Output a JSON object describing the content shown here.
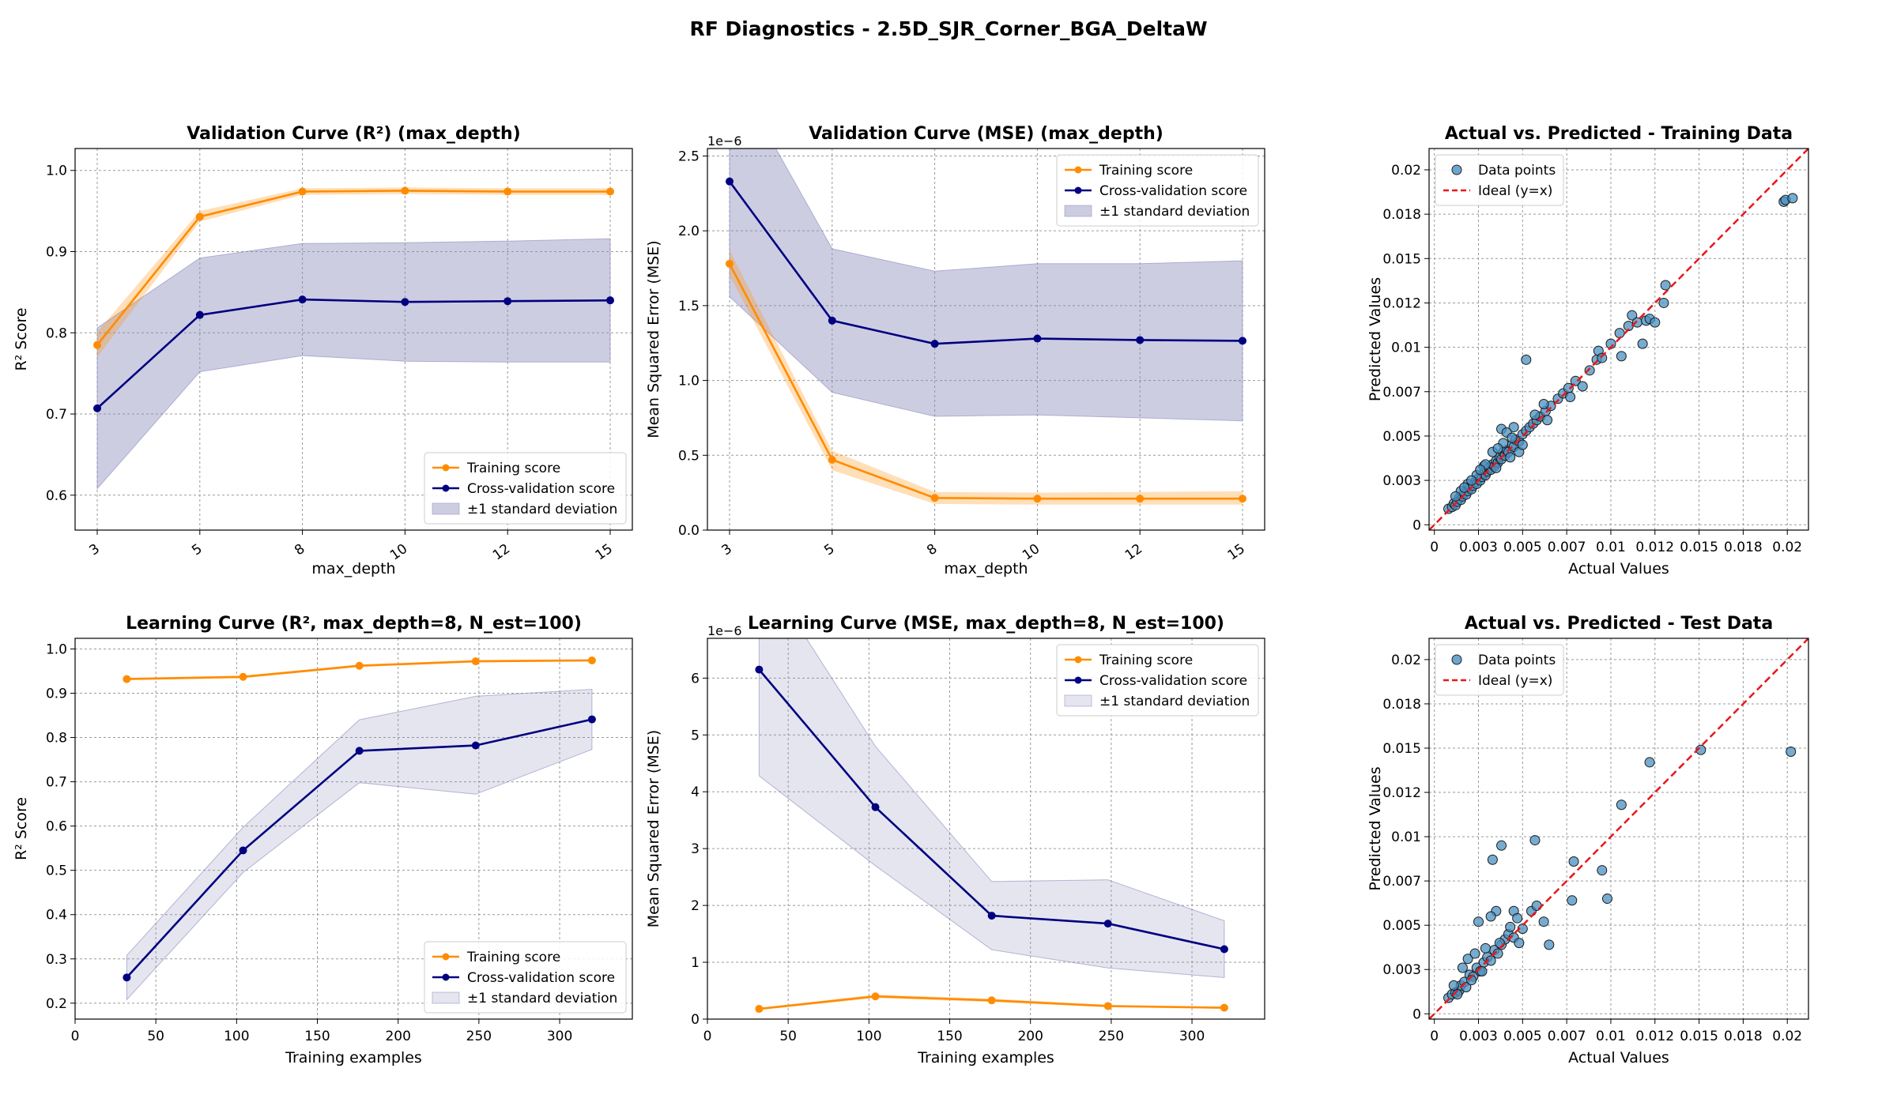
{
  "figure_title": "RF Diagnostics - 2.5D_SJR_Corner_BGA_DeltaW",
  "colors": {
    "training": "#ff8c00",
    "cv": "#000080",
    "band": "#8888bb",
    "points": "#4a90c2",
    "ideal": "#e8171b",
    "grid": "#9a9a9a"
  },
  "chart_data": [
    {
      "id": "vc_r2",
      "type": "line",
      "title": "Validation Curve (R²) (max_depth)",
      "xlabel": "max_depth",
      "ylabel": "R² Score",
      "x_scale": "categorical",
      "categories": [
        "3",
        "5",
        "8",
        "10",
        "12",
        "15"
      ],
      "ylim": [
        0.557,
        1.027
      ],
      "yticks": [
        0.6,
        0.7,
        0.8,
        0.9,
        1.0
      ],
      "ytick_labels": [
        "0.6",
        "0.7",
        "0.8",
        "0.9",
        "1.0"
      ],
      "series": [
        {
          "name": "Training score",
          "color_key": "training",
          "values": [
            0.785,
            0.943,
            0.974,
            0.975,
            0.974,
            0.974
          ],
          "lower": [
            0.77,
            0.937,
            0.97,
            0.971,
            0.97,
            0.97
          ],
          "upper": [
            0.801,
            0.95,
            0.978,
            0.979,
            0.978,
            0.978
          ]
        },
        {
          "name": "Cross-validation score",
          "color_key": "cv",
          "values": [
            0.707,
            0.822,
            0.841,
            0.838,
            0.839,
            0.84
          ],
          "lower": [
            0.608,
            0.752,
            0.772,
            0.765,
            0.764,
            0.764
          ],
          "upper": [
            0.806,
            0.892,
            0.91,
            0.911,
            0.913,
            0.916
          ]
        }
      ],
      "band_label": "±1 standard deviation",
      "legend_position": "lower-right",
      "grid": true
    },
    {
      "id": "vc_mse",
      "type": "line",
      "title": "Validation Curve (MSE) (max_depth)",
      "xlabel": "max_depth",
      "ylabel": "Mean Squared Error (MSE)",
      "x_scale": "categorical",
      "categories": [
        "3",
        "5",
        "8",
        "10",
        "12",
        "15"
      ],
      "ylim": [
        0,
        2.55e-06
      ],
      "yticks": [
        0,
        5e-07,
        1e-06,
        1.5e-06,
        2e-06,
        2.5e-06
      ],
      "ytick_labels": [
        "0.0",
        "0.5",
        "1.0",
        "1.5",
        "2.0",
        "2.5"
      ],
      "offset_text": "1e−6",
      "series": [
        {
          "name": "Training score",
          "color_key": "training",
          "values": [
            1.78e-06,
            4.7e-07,
            2.15e-07,
            2.1e-07,
            2.1e-07,
            2.1e-07
          ],
          "lower": [
            1.7e-06,
            4e-07,
            1.75e-07,
            1.7e-07,
            1.7e-07,
            1.7e-07
          ],
          "upper": [
            1.87e-06,
            5.3e-07,
            2.55e-07,
            2.5e-07,
            2.55e-07,
            2.6e-07
          ]
        },
        {
          "name": "Cross-validation score",
          "color_key": "cv",
          "values": [
            2.33e-06,
            1.4e-06,
            1.245e-06,
            1.28e-06,
            1.27e-06,
            1.265e-06
          ],
          "lower": [
            1.56e-06,
            9.2e-07,
            7.6e-07,
            7.7e-07,
            7.5e-07,
            7.3e-07
          ],
          "upper": [
            3.1e-06,
            1.88e-06,
            1.73e-06,
            1.78e-06,
            1.78e-06,
            1.8e-06
          ]
        }
      ],
      "band_label": "±1 standard deviation",
      "legend_position": "upper-right",
      "grid": true
    },
    {
      "id": "avp_train",
      "type": "scatter",
      "title": "Actual vs. Predicted - Training Data",
      "xlabel": "Actual Values",
      "ylabel": "Predicted Values",
      "xlim": [
        -0.0003,
        0.0212
      ],
      "ylim": [
        -0.0003,
        0.0212
      ],
      "ticks": [
        0,
        0.0025,
        0.005,
        0.0075,
        0.01,
        0.0125,
        0.015,
        0.0175,
        0.02
      ],
      "tick_labels": [
        "0",
        "0.003",
        "0.005",
        "0.007",
        "0.01",
        "0.012",
        "0.015",
        "0.018",
        "0.02"
      ],
      "series_name": "Data points",
      "ideal_label": "Ideal (y=x)",
      "legend_position": "upper-left",
      "points": [
        [
          0.0008,
          0.0009
        ],
        [
          0.001,
          0.001
        ],
        [
          0.0011,
          0.0012
        ],
        [
          0.0012,
          0.0011
        ],
        [
          0.0013,
          0.0013
        ],
        [
          0.0014,
          0.0015
        ],
        [
          0.0015,
          0.0014
        ],
        [
          0.0016,
          0.0016
        ],
        [
          0.0017,
          0.0018
        ],
        [
          0.0018,
          0.0017
        ],
        [
          0.0019,
          0.0019
        ],
        [
          0.002,
          0.0021
        ],
        [
          0.0021,
          0.002
        ],
        [
          0.0022,
          0.0022
        ],
        [
          0.0023,
          0.0024
        ],
        [
          0.0024,
          0.0023
        ],
        [
          0.0025,
          0.0026
        ],
        [
          0.0026,
          0.0025
        ],
        [
          0.0027,
          0.0027
        ],
        [
          0.0028,
          0.0029
        ],
        [
          0.0029,
          0.0028
        ],
        [
          0.003,
          0.003
        ],
        [
          0.0031,
          0.0032
        ],
        [
          0.0032,
          0.0031
        ],
        [
          0.0033,
          0.0034
        ],
        [
          0.0034,
          0.0033
        ],
        [
          0.0035,
          0.0036
        ],
        [
          0.0036,
          0.0035
        ],
        [
          0.0037,
          0.0038
        ],
        [
          0.0038,
          0.0037
        ],
        [
          0.0039,
          0.0041
        ],
        [
          0.004,
          0.0039
        ],
        [
          0.0041,
          0.0042
        ],
        [
          0.0042,
          0.0041
        ],
        [
          0.0044,
          0.0045
        ],
        [
          0.0045,
          0.0044
        ],
        [
          0.0046,
          0.0048
        ],
        [
          0.0048,
          0.0047
        ],
        [
          0.005,
          0.0051
        ],
        [
          0.0052,
          0.0053
        ],
        [
          0.0054,
          0.0055
        ],
        [
          0.0056,
          0.0057
        ],
        [
          0.0058,
          0.0059
        ],
        [
          0.006,
          0.0061
        ],
        [
          0.0063,
          0.0064
        ],
        [
          0.0066,
          0.0067
        ],
        [
          0.007,
          0.0071
        ],
        [
          0.0073,
          0.0074
        ],
        [
          0.0076,
          0.0077
        ],
        [
          0.008,
          0.0081
        ],
        [
          0.0088,
          0.0087
        ],
        [
          0.0092,
          0.0093
        ],
        [
          0.0093,
          0.0098
        ],
        [
          0.0095,
          0.0094
        ],
        [
          0.01,
          0.0102
        ],
        [
          0.0105,
          0.0108
        ],
        [
          0.011,
          0.0112
        ],
        [
          0.0112,
          0.0118
        ],
        [
          0.0115,
          0.0114
        ],
        [
          0.012,
          0.0115
        ],
        [
          0.0122,
          0.0116
        ],
        [
          0.0125,
          0.0114
        ],
        [
          0.0118,
          0.0102
        ],
        [
          0.013,
          0.0125
        ],
        [
          0.0131,
          0.0135
        ],
        [
          0.0106,
          0.0095
        ],
        [
          0.0052,
          0.0093
        ],
        [
          0.0045,
          0.0055
        ],
        [
          0.0043,
          0.0038
        ],
        [
          0.0038,
          0.0054
        ],
        [
          0.0035,
          0.0032
        ],
        [
          0.0041,
          0.0052
        ],
        [
          0.0048,
          0.0041
        ],
        [
          0.0062,
          0.0068
        ],
        [
          0.0077,
          0.0072
        ],
        [
          0.0084,
          0.0078
        ],
        [
          0.0064,
          0.0059
        ],
        [
          0.0057,
          0.0062
        ],
        [
          0.0033,
          0.0041
        ],
        [
          0.0028,
          0.0033
        ],
        [
          0.0024,
          0.0028
        ],
        [
          0.0019,
          0.0023
        ],
        [
          0.0015,
          0.0019
        ],
        [
          0.0012,
          0.0016
        ],
        [
          0.0044,
          0.0049
        ],
        [
          0.005,
          0.0045
        ],
        [
          0.0039,
          0.0046
        ],
        [
          0.0036,
          0.0043
        ],
        [
          0.0029,
          0.0034
        ],
        [
          0.0026,
          0.0031
        ],
        [
          0.0021,
          0.0025
        ],
        [
          0.0017,
          0.0021
        ],
        [
          0.0198,
          0.0182
        ],
        [
          0.0199,
          0.0183
        ],
        [
          0.0203,
          0.0184
        ]
      ]
    },
    {
      "id": "lc_r2",
      "type": "line",
      "title": "Learning Curve (R², max_depth=8, N_est=100)",
      "xlabel": "Training examples",
      "ylabel": "R² Score",
      "x_scale": "linear",
      "x": [
        32,
        104,
        176,
        248,
        320
      ],
      "xlim": [
        0,
        345
      ],
      "xticks": [
        0,
        50,
        100,
        150,
        200,
        250,
        300
      ],
      "ylim": [
        0.164,
        1.024
      ],
      "yticks": [
        0.2,
        0.3,
        0.4,
        0.5,
        0.6,
        0.7,
        0.8,
        0.9,
        1.0
      ],
      "ytick_labels": [
        "0.2",
        "0.3",
        "0.4",
        "0.5",
        "0.6",
        "0.7",
        "0.8",
        "0.9",
        "1.0"
      ],
      "series": [
        {
          "name": "Training score",
          "color_key": "training",
          "values": [
            0.932,
            0.937,
            0.962,
            0.972,
            0.974
          ],
          "lower": [
            0.93,
            0.934,
            0.959,
            0.97,
            0.972
          ],
          "upper": [
            0.935,
            0.94,
            0.965,
            0.975,
            0.977
          ]
        },
        {
          "name": "Cross-validation score",
          "color_key": "cv",
          "values": [
            0.258,
            0.545,
            0.77,
            0.782,
            0.841
          ],
          "lower": [
            0.208,
            0.495,
            0.698,
            0.672,
            0.773
          ],
          "upper": [
            0.308,
            0.597,
            0.84,
            0.893,
            0.909
          ]
        }
      ],
      "band_label": "±1 standard deviation",
      "legend_position": "lower-right",
      "grid": true
    },
    {
      "id": "lc_mse",
      "type": "line",
      "title": "Learning Curve (MSE, max_depth=8, N_est=100)",
      "xlabel": "Training examples",
      "ylabel": "Mean Squared Error (MSE)",
      "x_scale": "linear",
      "x": [
        32,
        104,
        176,
        248,
        320
      ],
      "xlim": [
        0,
        345
      ],
      "xticks": [
        0,
        50,
        100,
        150,
        200,
        250,
        300
      ],
      "ylim": [
        0,
        6.7e-06
      ],
      "yticks": [
        0,
        1e-06,
        2e-06,
        3e-06,
        4e-06,
        5e-06,
        6e-06
      ],
      "ytick_labels": [
        "0",
        "1",
        "2",
        "3",
        "4",
        "5",
        "6"
      ],
      "offset_text": "1e−6",
      "series": [
        {
          "name": "Training score",
          "color_key": "training",
          "values": [
            1.8e-07,
            4e-07,
            3.3e-07,
            2.3e-07,
            2e-07
          ],
          "lower": [
            1.6e-07,
            3.7e-07,
            3e-07,
            2.1e-07,
            1.8e-07
          ],
          "upper": [
            2e-07,
            4.3e-07,
            3.6e-07,
            2.5e-07,
            2.2e-07
          ]
        },
        {
          "name": "Cross-validation score",
          "color_key": "cv",
          "values": [
            6.15e-06,
            3.73e-06,
            1.82e-06,
            1.68e-06,
            1.23e-06
          ],
          "lower": [
            4.28e-06,
            2.7e-06,
            1.22e-06,
            9e-07,
            7.3e-07
          ],
          "upper": [
            8e-06,
            4.8e-06,
            2.42e-06,
            2.45e-06,
            1.73e-06
          ]
        }
      ],
      "band_label": "±1 standard deviation",
      "legend_position": "upper-right",
      "grid": true
    },
    {
      "id": "avp_test",
      "type": "scatter",
      "title": "Actual vs. Predicted - Test Data",
      "xlabel": "Actual Values",
      "ylabel": "Predicted Values",
      "xlim": [
        -0.0003,
        0.0212
      ],
      "ylim": [
        -0.0003,
        0.0212
      ],
      "ticks": [
        0,
        0.0025,
        0.005,
        0.0075,
        0.01,
        0.0125,
        0.015,
        0.0175,
        0.02
      ],
      "tick_labels": [
        "0",
        "0.003",
        "0.005",
        "0.007",
        "0.01",
        "0.012",
        "0.015",
        "0.018",
        "0.02"
      ],
      "series_name": "Data points",
      "ideal_label": "Ideal (y=x)",
      "legend_position": "upper-left",
      "points": [
        [
          0.0008,
          0.0009
        ],
        [
          0.001,
          0.0011
        ],
        [
          0.0012,
          0.0012
        ],
        [
          0.0014,
          0.0013
        ],
        [
          0.0015,
          0.0016
        ],
        [
          0.0017,
          0.0018
        ],
        [
          0.0018,
          0.0015
        ],
        [
          0.002,
          0.0022
        ],
        [
          0.0022,
          0.0021
        ],
        [
          0.0024,
          0.0026
        ],
        [
          0.0026,
          0.0024
        ],
        [
          0.0028,
          0.0029
        ],
        [
          0.003,
          0.0032
        ],
        [
          0.0032,
          0.003
        ],
        [
          0.0034,
          0.0036
        ],
        [
          0.0036,
          0.0034
        ],
        [
          0.0038,
          0.0039
        ],
        [
          0.004,
          0.0042
        ],
        [
          0.0042,
          0.0045
        ],
        [
          0.0045,
          0.0043
        ],
        [
          0.0048,
          0.004
        ],
        [
          0.005,
          0.0048
        ],
        [
          0.0055,
          0.0058
        ],
        [
          0.0058,
          0.0061
        ],
        [
          0.0062,
          0.0052
        ],
        [
          0.0065,
          0.0039
        ],
        [
          0.0078,
          0.0064
        ],
        [
          0.0079,
          0.0086
        ],
        [
          0.0095,
          0.0081
        ],
        [
          0.0098,
          0.0065
        ],
        [
          0.0106,
          0.0118
        ],
        [
          0.0122,
          0.0142
        ],
        [
          0.0151,
          0.0149
        ],
        [
          0.0202,
          0.0148
        ],
        [
          0.0038,
          0.0095
        ],
        [
          0.0033,
          0.0087
        ],
        [
          0.0057,
          0.0098
        ],
        [
          0.0035,
          0.0058
        ],
        [
          0.0045,
          0.0058
        ],
        [
          0.0025,
          0.0052
        ],
        [
          0.0032,
          0.0055
        ],
        [
          0.0016,
          0.0026
        ],
        [
          0.0013,
          0.0011
        ],
        [
          0.0021,
          0.0019
        ],
        [
          0.0027,
          0.0024
        ],
        [
          0.0029,
          0.0037
        ],
        [
          0.0037,
          0.004
        ],
        [
          0.0043,
          0.0049
        ],
        [
          0.0047,
          0.0054
        ],
        [
          0.0019,
          0.0031
        ],
        [
          0.0023,
          0.0034
        ],
        [
          0.0011,
          0.0016
        ]
      ]
    }
  ]
}
